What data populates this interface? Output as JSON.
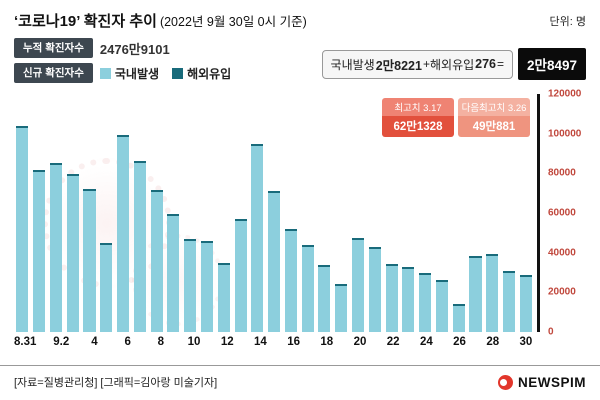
{
  "header": {
    "title": "‘코로나19’ 확진자 추이",
    "title_suffix": "(2022년 9월 30일 0시 기준)",
    "unit_label": "단위: 명",
    "cumulative_badge": "누적 확진자수",
    "cumulative_value": "2476만9101",
    "new_badge": "신규 확진자수",
    "legend": [
      {
        "label": "국내발생",
        "color": "#8ccfdd"
      },
      {
        "label": "해외유입",
        "color": "#196b7b"
      }
    ]
  },
  "headline": {
    "domestic_label": "국내발생",
    "domestic_value": "2만8221",
    "plus": " + ",
    "overseas_label": "해외유입",
    "overseas_value": "276",
    "equals": " = ",
    "total": "2만8497"
  },
  "annotations": [
    {
      "label": "최고치 3.17",
      "value": "62만1328",
      "label_bg": "#ef8373",
      "value_bg": "#e2503c"
    },
    {
      "label": "다음최고치 3.26",
      "value": "49만881",
      "label_bg": "#f4b1a1",
      "value_bg": "#ef947f"
    }
  ],
  "chart_data": {
    "type": "bar",
    "title": "‘코로나19’ 확진자 추이 (2022년 9월 30일 0시 기준)",
    "xlabel": "",
    "ylabel": "명",
    "x": [
      "8.31",
      "9.1",
      "9.2",
      "9.3",
      "9.4",
      "9.5",
      "9.6",
      "9.7",
      "9.8",
      "9.9",
      "9.10",
      "9.11",
      "9.12",
      "9.13",
      "9.14",
      "9.15",
      "9.16",
      "9.17",
      "9.18",
      "9.19",
      "9.20",
      "9.21",
      "9.22",
      "9.23",
      "9.24",
      "9.25",
      "9.26",
      "9.27",
      "9.28",
      "9.29",
      "9.30"
    ],
    "values": [
      103961,
      81500,
      85300,
      79800,
      72000,
      45000,
      99300,
      86000,
      71500,
      59500,
      47000,
      46000,
      35000,
      57000,
      95000,
      71000,
      52000,
      44000,
      34000,
      24000,
      47500,
      43000,
      34500,
      33000,
      30000,
      26000,
      14000,
      38500,
      39500,
      31000,
      28497
    ],
    "final_day_breakdown": {
      "domestic": 28221,
      "overseas": 276,
      "total": 28497
    },
    "x_tick_labels": [
      "8.31",
      "9.2",
      "4",
      "6",
      "8",
      "10",
      "12",
      "14",
      "16",
      "18",
      "20",
      "22",
      "24",
      "26",
      "28",
      "30"
    ],
    "y_ticks": [
      0,
      20000,
      40000,
      60000,
      80000,
      100000,
      120000
    ],
    "ylim": [
      0,
      120000
    ],
    "grid": false,
    "legend_entries": [
      "국내발생",
      "해외유입"
    ],
    "legend_position": "top-left",
    "bar_color": "#8ccfdd",
    "cap_color": "#196b7b",
    "tick_color": "#c0473c"
  },
  "footer": {
    "source": "[자료=질병관리청] [그래픽=김아랑 미술기자]",
    "logo": "NEWSPIM"
  }
}
